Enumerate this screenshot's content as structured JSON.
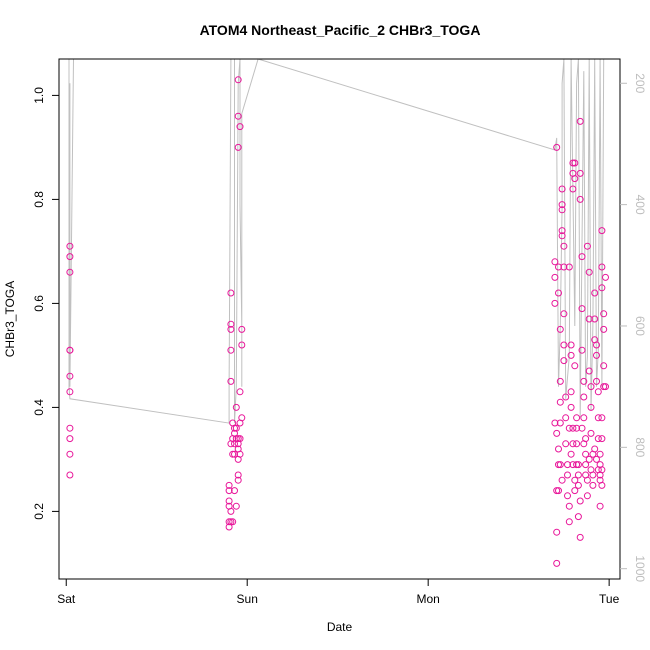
{
  "chart_data": {
    "type": "scatter",
    "title": "ATOM4 Northeast_Pacific_2 CHBr3_TOGA",
    "xlabel": "Date",
    "ylabel": "CHBr3_TOGA",
    "x_ticks": [
      "Sat",
      "Sun",
      "Mon",
      "Tue"
    ],
    "x_range": [
      -0.04,
      3.06
    ],
    "y_ticks": [
      "0.2",
      "0.4",
      "0.6",
      "0.8",
      "1.0"
    ],
    "y_tick_values": [
      0.2,
      0.4,
      0.6,
      0.8,
      1.0
    ],
    "ylim": [
      0.07,
      1.07
    ],
    "right_axis_ticks": [
      "200",
      "400",
      "600",
      "800",
      "1000"
    ],
    "right_axis_values": [
      200,
      400,
      600,
      800,
      1000
    ],
    "right_axis_range": [
      1017,
      160
    ],
    "grid": false,
    "colors": {
      "points": "#e8179a",
      "altitude_line": "#c0c0c0",
      "right_axis": "#bdbdbd"
    },
    "series": [
      {
        "points": [
          [
            0.02,
            0.71
          ],
          [
            0.02,
            0.69
          ],
          [
            0.02,
            0.66
          ],
          [
            0.02,
            0.51
          ],
          [
            0.02,
            0.51
          ],
          [
            0.02,
            0.46
          ],
          [
            0.02,
            0.43
          ],
          [
            0.02,
            0.36
          ],
          [
            0.02,
            0.34
          ],
          [
            0.02,
            0.31
          ],
          [
            0.02,
            0.27
          ],
          [
            0.91,
            0.62
          ],
          [
            0.91,
            0.56
          ],
          [
            0.91,
            0.55
          ],
          [
            0.91,
            0.51
          ],
          [
            0.91,
            0.45
          ],
          [
            0.9,
            0.25
          ],
          [
            0.9,
            0.24
          ],
          [
            0.9,
            0.22
          ],
          [
            0.9,
            0.21
          ],
          [
            0.91,
            0.2
          ],
          [
            0.9,
            0.18
          ],
          [
            0.9,
            0.17
          ],
          [
            0.91,
            0.18
          ],
          [
            0.92,
            0.18
          ],
          [
            0.91,
            0.33
          ],
          [
            0.92,
            0.31
          ],
          [
            0.92,
            0.34
          ],
          [
            0.92,
            0.37
          ],
          [
            0.93,
            0.35
          ],
          [
            0.93,
            0.36
          ],
          [
            0.93,
            0.33
          ],
          [
            0.93,
            0.31
          ],
          [
            0.93,
            0.24
          ],
          [
            0.94,
            0.21
          ],
          [
            0.94,
            0.4
          ],
          [
            0.94,
            0.34
          ],
          [
            0.94,
            0.36
          ],
          [
            0.95,
            0.32
          ],
          [
            0.95,
            0.3
          ],
          [
            0.95,
            0.26
          ],
          [
            0.95,
            0.27
          ],
          [
            0.95,
            0.33
          ],
          [
            0.95,
            0.34
          ],
          [
            0.96,
            0.37
          ],
          [
            0.96,
            0.34
          ],
          [
            0.96,
            0.31
          ],
          [
            0.96,
            0.43
          ],
          [
            0.97,
            0.38
          ],
          [
            0.97,
            0.55
          ],
          [
            0.97,
            0.52
          ],
          [
            0.95,
            1.03
          ],
          [
            0.95,
            0.96
          ],
          [
            0.96,
            0.94
          ],
          [
            0.95,
            0.9
          ],
          [
            2.7,
            0.68
          ],
          [
            2.7,
            0.65
          ],
          [
            2.7,
            0.6
          ],
          [
            2.7,
            0.37
          ],
          [
            2.71,
            0.35
          ],
          [
            2.71,
            0.16
          ],
          [
            2.71,
            0.1
          ],
          [
            2.71,
            0.24
          ],
          [
            2.72,
            0.24
          ],
          [
            2.72,
            0.29
          ],
          [
            2.72,
            0.32
          ],
          [
            2.71,
            0.9
          ],
          [
            2.72,
            0.67
          ],
          [
            2.72,
            0.62
          ],
          [
            2.73,
            0.55
          ],
          [
            2.73,
            0.45
          ],
          [
            2.73,
            0.41
          ],
          [
            2.73,
            0.37
          ],
          [
            2.73,
            0.29
          ],
          [
            2.74,
            0.26
          ],
          [
            2.74,
            0.82
          ],
          [
            2.74,
            0.79
          ],
          [
            2.74,
            0.78
          ],
          [
            2.74,
            0.74
          ],
          [
            2.74,
            0.73
          ],
          [
            2.75,
            0.71
          ],
          [
            2.75,
            0.67
          ],
          [
            2.75,
            0.58
          ],
          [
            2.75,
            0.52
          ],
          [
            2.75,
            0.49
          ],
          [
            2.76,
            0.42
          ],
          [
            2.76,
            0.38
          ],
          [
            2.76,
            0.33
          ],
          [
            2.77,
            0.29
          ],
          [
            2.77,
            0.27
          ],
          [
            2.77,
            0.23
          ],
          [
            2.78,
            0.21
          ],
          [
            2.78,
            0.18
          ],
          [
            2.78,
            0.67
          ],
          [
            2.79,
            0.52
          ],
          [
            2.79,
            0.5
          ],
          [
            2.79,
            0.43
          ],
          [
            2.79,
            0.4
          ],
          [
            2.8,
            0.36
          ],
          [
            2.8,
            0.33
          ],
          [
            2.8,
            0.29
          ],
          [
            2.81,
            0.26
          ],
          [
            2.81,
            0.24
          ],
          [
            2.8,
            0.87
          ],
          [
            2.8,
            0.85
          ],
          [
            2.8,
            0.82
          ],
          [
            2.81,
            0.87
          ],
          [
            2.81,
            0.84
          ],
          [
            2.81,
            0.48
          ],
          [
            2.82,
            0.38
          ],
          [
            2.82,
            0.36
          ],
          [
            2.82,
            0.33
          ],
          [
            2.83,
            0.29
          ],
          [
            2.83,
            0.25
          ],
          [
            2.84,
            0.22
          ],
          [
            2.83,
            0.19
          ],
          [
            2.84,
            0.15
          ],
          [
            2.84,
            0.95
          ],
          [
            2.84,
            0.85
          ],
          [
            2.84,
            0.8
          ],
          [
            2.85,
            0.69
          ],
          [
            2.85,
            0.59
          ],
          [
            2.85,
            0.51
          ],
          [
            2.86,
            0.45
          ],
          [
            2.86,
            0.42
          ],
          [
            2.86,
            0.38
          ],
          [
            2.87,
            0.34
          ],
          [
            2.87,
            0.31
          ],
          [
            2.87,
            0.27
          ],
          [
            2.88,
            0.23
          ],
          [
            2.88,
            0.71
          ],
          [
            2.89,
            0.66
          ],
          [
            2.89,
            0.57
          ],
          [
            2.89,
            0.47
          ],
          [
            2.9,
            0.44
          ],
          [
            2.9,
            0.4
          ],
          [
            2.9,
            0.35
          ],
          [
            2.91,
            0.31
          ],
          [
            2.91,
            0.27
          ],
          [
            2.91,
            0.25
          ],
          [
            2.92,
            0.62
          ],
          [
            2.92,
            0.57
          ],
          [
            2.92,
            0.53
          ],
          [
            2.93,
            0.52
          ],
          [
            2.93,
            0.5
          ],
          [
            2.93,
            0.45
          ],
          [
            2.94,
            0.43
          ],
          [
            2.94,
            0.38
          ],
          [
            2.94,
            0.34
          ],
          [
            2.95,
            0.29
          ],
          [
            2.95,
            0.26
          ],
          [
            2.95,
            0.21
          ],
          [
            2.96,
            0.74
          ],
          [
            2.96,
            0.67
          ],
          [
            2.96,
            0.63
          ],
          [
            2.97,
            0.58
          ],
          [
            2.97,
            0.55
          ],
          [
            2.97,
            0.48
          ],
          [
            2.97,
            0.44
          ],
          [
            2.98,
            0.65
          ],
          [
            2.98,
            0.44
          ],
          [
            2.96,
            0.38
          ],
          [
            2.96,
            0.34
          ],
          [
            2.95,
            0.31
          ],
          [
            2.96,
            0.28
          ],
          [
            2.96,
            0.25
          ],
          [
            2.78,
            0.36
          ],
          [
            2.79,
            0.31
          ],
          [
            2.82,
            0.29
          ],
          [
            2.83,
            0.27
          ],
          [
            2.85,
            0.36
          ],
          [
            2.86,
            0.33
          ],
          [
            2.87,
            0.29
          ],
          [
            2.88,
            0.26
          ],
          [
            2.89,
            0.3
          ],
          [
            2.9,
            0.28
          ],
          [
            2.92,
            0.32
          ],
          [
            2.93,
            0.3
          ],
          [
            2.94,
            0.28
          ],
          [
            2.95,
            0.27
          ]
        ]
      }
    ],
    "altitude_path": [
      [
        0.02,
        200
      ],
      [
        0.02,
        330
      ],
      [
        0.02,
        560
      ],
      [
        0.02,
        700
      ],
      [
        0.04,
        160
      ],
      [
        0.015,
        160
      ],
      [
        0.015,
        700
      ],
      [
        0.02,
        720
      ],
      [
        0.9,
        760
      ],
      [
        0.9,
        700
      ],
      [
        0.91,
        160
      ],
      [
        0.93,
        160
      ],
      [
        0.93,
        760
      ],
      [
        0.94,
        700
      ],
      [
        0.95,
        200
      ],
      [
        0.96,
        160
      ],
      [
        0.96,
        400
      ],
      [
        0.97,
        600
      ],
      [
        0.97,
        700
      ],
      [
        0.97,
        250
      ],
      [
        1.06,
        160
      ],
      [
        2.7,
        310
      ],
      [
        2.71,
        290
      ],
      [
        2.72,
        700
      ],
      [
        2.73,
        600
      ],
      [
        2.74,
        400
      ],
      [
        2.74,
        200
      ],
      [
        2.75,
        160
      ],
      [
        2.76,
        720
      ],
      [
        2.78,
        650
      ],
      [
        2.79,
        160
      ],
      [
        2.81,
        600
      ],
      [
        2.82,
        200
      ],
      [
        2.83,
        160
      ],
      [
        2.84,
        750
      ],
      [
        2.86,
        180
      ],
      [
        2.87,
        700
      ],
      [
        2.88,
        650
      ],
      [
        2.89,
        160
      ],
      [
        2.9,
        740
      ],
      [
        2.91,
        600
      ],
      [
        2.92,
        160
      ],
      [
        2.93,
        700
      ],
      [
        2.94,
        640
      ],
      [
        2.95,
        160
      ],
      [
        2.96,
        700
      ],
      [
        2.97,
        160
      ],
      [
        3.0,
        160
      ]
    ]
  }
}
